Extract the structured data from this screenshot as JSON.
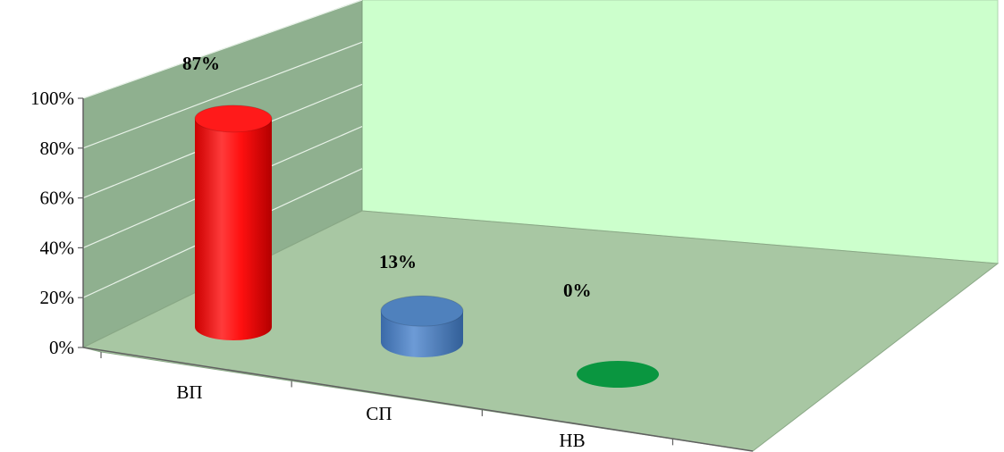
{
  "chart_data": {
    "type": "bar",
    "style": "3d-cylinder",
    "categories": [
      "ВП",
      "СП",
      "НВ"
    ],
    "values": [
      87,
      13,
      0
    ],
    "value_labels": [
      "87%",
      "13%",
      "0%"
    ],
    "colors": [
      "#ff1a1a",
      "#4f81bd",
      "#0a9640"
    ],
    "ylim": [
      0,
      100
    ],
    "yticks": [
      "0%",
      "20%",
      "40%",
      "60%",
      "80%",
      "100%"
    ],
    "grid": true,
    "legend": "none",
    "wall_color": "#8fb08f",
    "back_wall_color": "#ccffcc"
  }
}
